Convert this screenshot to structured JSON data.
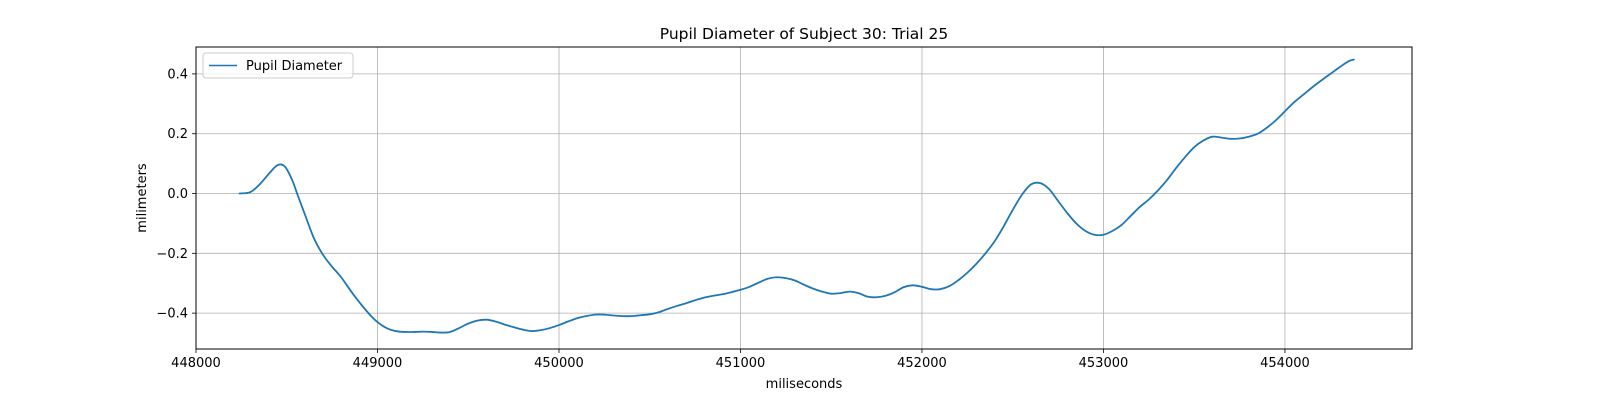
{
  "chart_data": {
    "type": "line",
    "title": "Pupil Diameter of Subject 30: Trial 25",
    "xlabel": "miliseconds",
    "ylabel": "milimeters",
    "xlim": [
      448000,
      454700
    ],
    "ylim": [
      -0.52,
      0.49
    ],
    "xticks": [
      448000,
      449000,
      450000,
      451000,
      452000,
      453000,
      454000
    ],
    "xtick_labels": [
      "448000",
      "449000",
      "450000",
      "451000",
      "452000",
      "453000",
      "454000"
    ],
    "yticks": [
      -0.4,
      -0.2,
      0.0,
      0.2,
      0.4
    ],
    "ytick_labels": [
      "−0.4",
      "−0.2",
      "0.0",
      "0.2",
      "0.4"
    ],
    "grid": true,
    "legend_position": "top-left",
    "series": [
      {
        "name": "Pupil Diameter",
        "color": "#1f77b4",
        "x": [
          448240,
          448300,
          448350,
          448400,
          448450,
          448490,
          448530,
          448560,
          448600,
          448650,
          448700,
          448750,
          448800,
          448870,
          448950,
          449000,
          449050,
          449100,
          449150,
          449200,
          449250,
          449300,
          449350,
          449400,
          449450,
          449500,
          449550,
          449600,
          449650,
          449700,
          449750,
          449800,
          449850,
          449900,
          449950,
          450000,
          450050,
          450100,
          450150,
          450200,
          450250,
          450300,
          450350,
          450400,
          450450,
          450500,
          450550,
          450600,
          450650,
          450700,
          450750,
          450800,
          450850,
          450900,
          450950,
          451000,
          451050,
          451100,
          451150,
          451200,
          451250,
          451300,
          451350,
          451400,
          451450,
          451500,
          451550,
          451600,
          451650,
          451700,
          451750,
          451800,
          451850,
          451900,
          451950,
          452000,
          452050,
          452100,
          452150,
          452200,
          452250,
          452300,
          452350,
          452400,
          452450,
          452500,
          452550,
          452600,
          452650,
          452700,
          452750,
          452800,
          452850,
          452900,
          452950,
          453000,
          453050,
          453100,
          453150,
          453200,
          453250,
          453300,
          453350,
          453400,
          453450,
          453500,
          453550,
          453600,
          453650,
          453700,
          453750,
          453800,
          453850,
          453900,
          453950,
          454000,
          454050,
          454100,
          454150,
          454200,
          454250,
          454300,
          454350,
          454380
        ],
        "values": [
          0.0,
          0.005,
          0.03,
          0.065,
          0.095,
          0.09,
          0.045,
          -0.005,
          -0.07,
          -0.15,
          -0.205,
          -0.245,
          -0.28,
          -0.34,
          -0.4,
          -0.43,
          -0.45,
          -0.46,
          -0.463,
          -0.463,
          -0.462,
          -0.463,
          -0.465,
          -0.463,
          -0.45,
          -0.435,
          -0.425,
          -0.422,
          -0.428,
          -0.438,
          -0.447,
          -0.455,
          -0.46,
          -0.457,
          -0.45,
          -0.44,
          -0.428,
          -0.417,
          -0.41,
          -0.405,
          -0.405,
          -0.408,
          -0.41,
          -0.41,
          -0.407,
          -0.404,
          -0.397,
          -0.386,
          -0.376,
          -0.367,
          -0.357,
          -0.348,
          -0.342,
          -0.337,
          -0.33,
          -0.322,
          -0.312,
          -0.298,
          -0.285,
          -0.28,
          -0.283,
          -0.291,
          -0.305,
          -0.318,
          -0.328,
          -0.335,
          -0.333,
          -0.328,
          -0.333,
          -0.345,
          -0.347,
          -0.342,
          -0.33,
          -0.313,
          -0.307,
          -0.312,
          -0.32,
          -0.32,
          -0.31,
          -0.29,
          -0.265,
          -0.235,
          -0.2,
          -0.16,
          -0.11,
          -0.055,
          -0.005,
          0.03,
          0.035,
          0.015,
          -0.025,
          -0.065,
          -0.1,
          -0.125,
          -0.138,
          -0.138,
          -0.125,
          -0.105,
          -0.075,
          -0.045,
          -0.02,
          0.01,
          0.045,
          0.085,
          0.122,
          0.155,
          0.177,
          0.19,
          0.187,
          0.183,
          0.184,
          0.19,
          0.2,
          0.22,
          0.245,
          0.275,
          0.305,
          0.33,
          0.355,
          0.378,
          0.4,
          0.422,
          0.442,
          0.448
        ]
      }
    ]
  }
}
